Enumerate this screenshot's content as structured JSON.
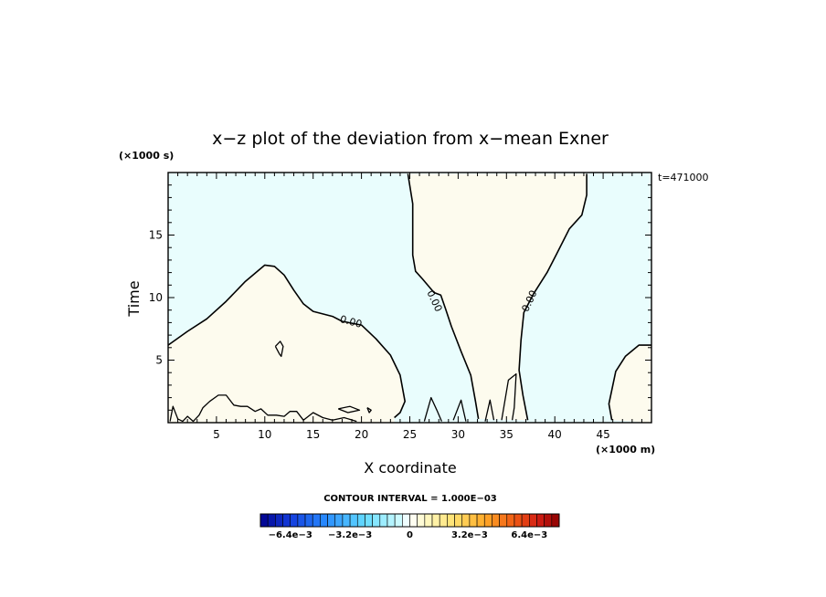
{
  "chart_data": {
    "type": "contour",
    "title": "x−z plot of the deviation from x−mean Exner",
    "xlabel": "X coordinate",
    "ylabel": "Time",
    "x_unit": "(×1000 m)",
    "y_unit": "(×1000 s)",
    "time_label": "t=471000",
    "xlim": [
      0,
      50
    ],
    "ylim": [
      0,
      20
    ],
    "x_ticks": [
      "5",
      "10",
      "15",
      "20",
      "25",
      "30",
      "35",
      "40",
      "45"
    ],
    "y_ticks": [
      "5",
      "10",
      "15"
    ],
    "contour_interval_text": "CONTOUR INTERVAL = 1.000E−03",
    "contour_level_label": "0.00",
    "contour_label_count": 3,
    "colorbar": {
      "min": -0.008,
      "max": 0.008,
      "labels": [
        "−6.4e−3",
        "−3.2e−3",
        "0",
        "3.2e−3",
        "6.4e−3"
      ],
      "label_values": [
        -0.0064,
        -0.0032,
        0,
        0.0032,
        0.0064
      ]
    },
    "regions": [
      {
        "sign": "positive",
        "color": "#fdfbee"
      },
      {
        "sign": "negative",
        "color": "#e9fdfd"
      }
    ],
    "zero_contours": [
      [
        [
          0,
          6.2
        ],
        [
          2,
          7.3
        ],
        [
          4,
          8.3
        ],
        [
          6,
          9.7
        ],
        [
          8,
          11.3
        ],
        [
          10,
          12.6
        ],
        [
          11,
          12.5
        ],
        [
          12,
          11.8
        ],
        [
          13,
          10.6
        ],
        [
          14,
          9.5
        ],
        [
          15,
          8.9
        ],
        [
          17,
          8.5
        ],
        [
          18,
          8.1
        ],
        [
          20,
          7.8
        ],
        [
          21.5,
          6.7
        ],
        [
          23,
          5.4
        ],
        [
          24,
          3.8
        ],
        [
          24.5,
          1.7
        ],
        [
          24,
          0.8
        ],
        [
          23.4,
          0.4
        ]
      ],
      [
        [
          24.8,
          19.9
        ],
        [
          25.3,
          17.5
        ],
        [
          25.3,
          13.4
        ],
        [
          25.6,
          12.1
        ],
        [
          26.3,
          11.5
        ],
        [
          27.5,
          10.4
        ],
        [
          28.2,
          10.2
        ],
        [
          28.7,
          9.1
        ],
        [
          29.3,
          7.7
        ],
        [
          30.3,
          5.7
        ],
        [
          31.3,
          3.8
        ],
        [
          31.8,
          1.7
        ],
        [
          32.1,
          0.3
        ]
      ],
      [
        [
          43.3,
          19.9
        ],
        [
          43.3,
          18.2
        ],
        [
          42.8,
          16.6
        ],
        [
          41.5,
          15.5
        ],
        [
          40.2,
          13.5
        ],
        [
          39.2,
          12.0
        ],
        [
          37.8,
          10.3
        ],
        [
          36.8,
          8.8
        ],
        [
          36.5,
          6.6
        ],
        [
          36.3,
          4.2
        ],
        [
          36.7,
          2.2
        ],
        [
          37.2,
          0.2
        ]
      ],
      [
        [
          50,
          6.2
        ],
        [
          48.7,
          6.2
        ],
        [
          47.3,
          5.3
        ],
        [
          46.3,
          4.1
        ],
        [
          45.6,
          1.5
        ],
        [
          45.9,
          0.2
        ]
      ]
    ],
    "small_zero_contours": [
      [
        [
          11.1,
          6.1
        ],
        [
          11.5,
          5.5
        ],
        [
          11.7,
          5.3
        ],
        [
          11.9,
          6.1
        ],
        [
          11.6,
          6.5
        ],
        [
          11.1,
          6.1
        ]
      ],
      [
        [
          17.6,
          1.1
        ],
        [
          18.8,
          1.3
        ],
        [
          19.8,
          1.0
        ],
        [
          18.6,
          0.8
        ],
        [
          17.6,
          1.1
        ]
      ],
      [
        [
          20.6,
          1.2
        ],
        [
          21.0,
          1.0
        ],
        [
          20.8,
          0.8
        ],
        [
          20.6,
          1.2
        ]
      ],
      [
        [
          0.2,
          0.1
        ],
        [
          0.5,
          1.3
        ],
        [
          1.0,
          0.3
        ],
        [
          1.5,
          0.1
        ],
        [
          2.0,
          0.5
        ],
        [
          2.6,
          0.1
        ],
        [
          3.2,
          0.6
        ],
        [
          3.6,
          1.2
        ],
        [
          4.3,
          1.7
        ],
        [
          5.2,
          2.2
        ],
        [
          6.0,
          2.2
        ],
        [
          6.8,
          1.4
        ],
        [
          7.5,
          1.3
        ],
        [
          8.2,
          1.3
        ],
        [
          9.0,
          0.9
        ],
        [
          9.6,
          1.1
        ],
        [
          10.3,
          0.6
        ],
        [
          11.2,
          0.6
        ],
        [
          12.0,
          0.5
        ],
        [
          12.6,
          0.9
        ],
        [
          13.3,
          0.9
        ],
        [
          14.0,
          0.2
        ],
        [
          15.0,
          0.8
        ],
        [
          16.0,
          0.4
        ],
        [
          17.0,
          0.2
        ],
        [
          18.2,
          0.4
        ],
        [
          19.5,
          0.1
        ]
      ],
      [
        [
          26.5,
          0.1
        ],
        [
          27.2,
          2.0
        ],
        [
          27.8,
          1.0
        ],
        [
          28.3,
          0.1
        ]
      ],
      [
        [
          29.5,
          0.2
        ],
        [
          30.3,
          1.8
        ],
        [
          30.8,
          0.1
        ]
      ],
      [
        [
          32.8,
          0.1
        ],
        [
          33.3,
          1.8
        ],
        [
          33.7,
          0.2
        ]
      ],
      [
        [
          34.5,
          0.2
        ],
        [
          35.2,
          3.4
        ],
        [
          36.0,
          3.9
        ],
        [
          35.8,
          1.2
        ],
        [
          35.6,
          0.2
        ]
      ]
    ]
  }
}
